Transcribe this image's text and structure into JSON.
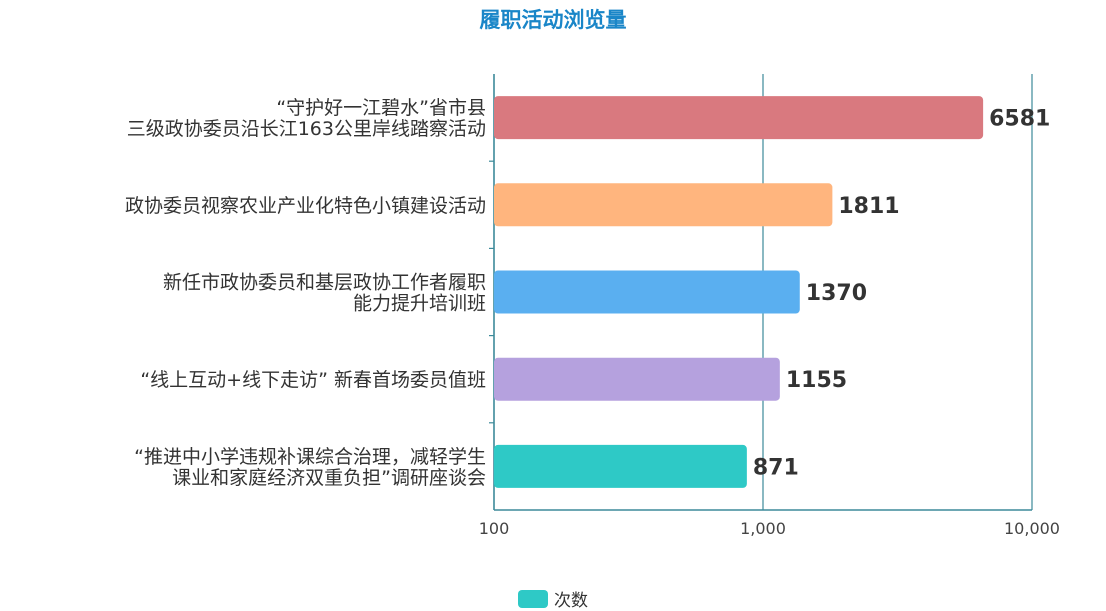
{
  "chart_data": {
    "type": "bar",
    "orientation": "horizontal",
    "title": "履职活动浏览量",
    "x_scale": "log",
    "xlim": [
      100,
      10000
    ],
    "x_ticks": [
      100,
      1000,
      10000
    ],
    "x_tick_labels": [
      "100",
      "1,000",
      "10,000"
    ],
    "grid": true,
    "legend_position": "bottom",
    "categories": [
      [
        "“守护好一江碧水”省市县",
        "三级政协委员沿长江163公里岸线踏察活动"
      ],
      [
        "政协委员视察农业产业化特色小镇建设活动"
      ],
      [
        "新任市政协委员和基层政协工作者履职",
        "能力提升培训班"
      ],
      [
        "“线上互动+线下走访” 新春首场委员值班"
      ],
      [
        "“推进中小学违规补课综合治理，减轻学生",
        "课业和家庭经济双重负担”调研座谈会"
      ]
    ],
    "series": [
      {
        "name": "次数",
        "values": [
          6581,
          1811,
          1370,
          1155,
          871
        ],
        "value_labels": [
          "6581",
          "1811",
          "1370",
          "1155",
          "871"
        ]
      }
    ],
    "bar_colors": [
      "#d9797f",
      "#ffb57e",
      "#5aaff0",
      "#b5a1de",
      "#2ec9c6"
    ],
    "legend_color": "#2ec9c6",
    "axis_color": "#3d8a9a"
  }
}
